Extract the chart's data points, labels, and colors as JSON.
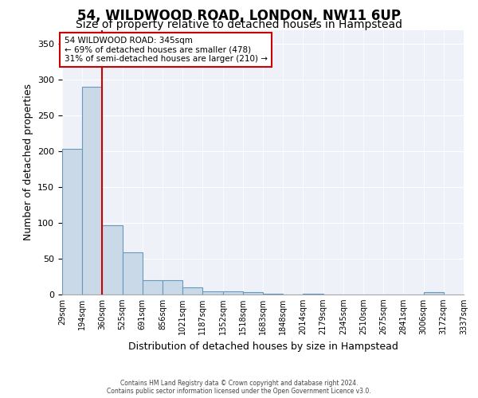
{
  "title1": "54, WILDWOOD ROAD, LONDON, NW11 6UP",
  "title2": "Size of property relative to detached houses in Hampstead",
  "xlabel": "Distribution of detached houses by size in Hampstead",
  "ylabel": "Number of detached properties",
  "tick_labels": [
    "29sqm",
    "194sqm",
    "360sqm",
    "525sqm",
    "691sqm",
    "856sqm",
    "1021sqm",
    "1187sqm",
    "1352sqm",
    "1518sqm",
    "1683sqm",
    "1848sqm",
    "2014sqm",
    "2179sqm",
    "2345sqm",
    "2510sqm",
    "2675sqm",
    "2841sqm",
    "3006sqm",
    "3172sqm",
    "3337sqm"
  ],
  "values": [
    204,
    290,
    97,
    59,
    20,
    20,
    10,
    5,
    5,
    3,
    1,
    0,
    1,
    0,
    0,
    0,
    0,
    0,
    3,
    0
  ],
  "bar_color": "#c9d9e8",
  "bar_edge_color": "#6699bb",
  "property_line_bin_idx": 2,
  "property_label": "54 WILDWOOD ROAD: 345sqm",
  "annotation_line1": "← 69% of detached houses are smaller (478)",
  "annotation_line2": "31% of semi-detached houses are larger (210) →",
  "annotation_box_color": "#ffffff",
  "annotation_box_edge": "#cc0000",
  "property_line_color": "#cc0000",
  "ylim": [
    0,
    370
  ],
  "yticks": [
    0,
    50,
    100,
    150,
    200,
    250,
    300,
    350
  ],
  "footer1": "Contains HM Land Registry data © Crown copyright and database right 2024.",
  "footer2": "Contains public sector information licensed under the Open Government Licence v3.0.",
  "bg_color": "#eef2f8",
  "title1_fontsize": 12,
  "title2_fontsize": 10,
  "tick_fontsize": 7,
  "ylabel_fontsize": 9,
  "xlabel_fontsize": 9
}
